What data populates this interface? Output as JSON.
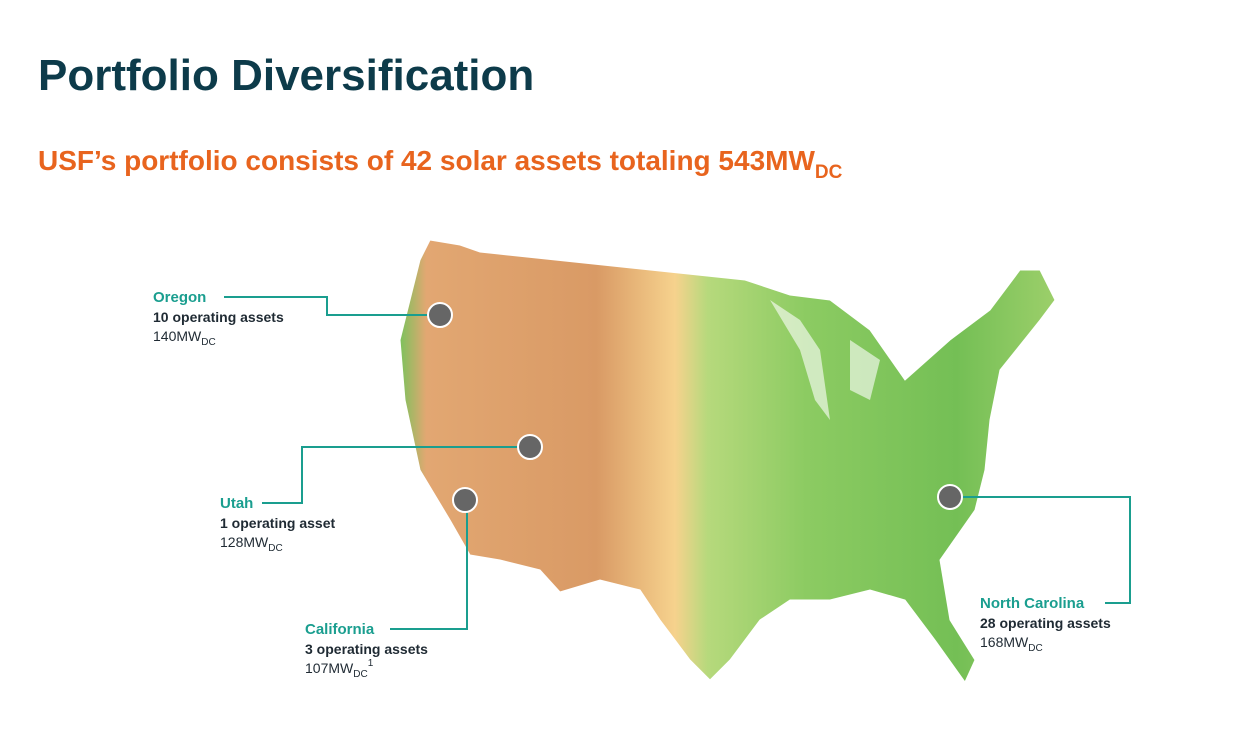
{
  "header": {
    "title": "Portfolio Diversification",
    "subtitle": {
      "text": "USF’s portfolio consists of 42 solar assets totaling 543MW",
      "subscript": "DC"
    }
  },
  "locations": [
    {
      "state": "Oregon",
      "assets": "10 operating assets",
      "capacity": "140MW",
      "unit": "DC"
    },
    {
      "state": "Utah",
      "assets": "1 operating asset",
      "capacity": "128MW",
      "unit": "DC"
    },
    {
      "state": "California",
      "assets": "3 operating assets",
      "capacity": "107MW",
      "unit": "DC",
      "footnote": "1"
    },
    {
      "state": "North Carolina",
      "assets": "28 operating assets",
      "capacity": "168MW",
      "unit": "DC"
    }
  ]
}
